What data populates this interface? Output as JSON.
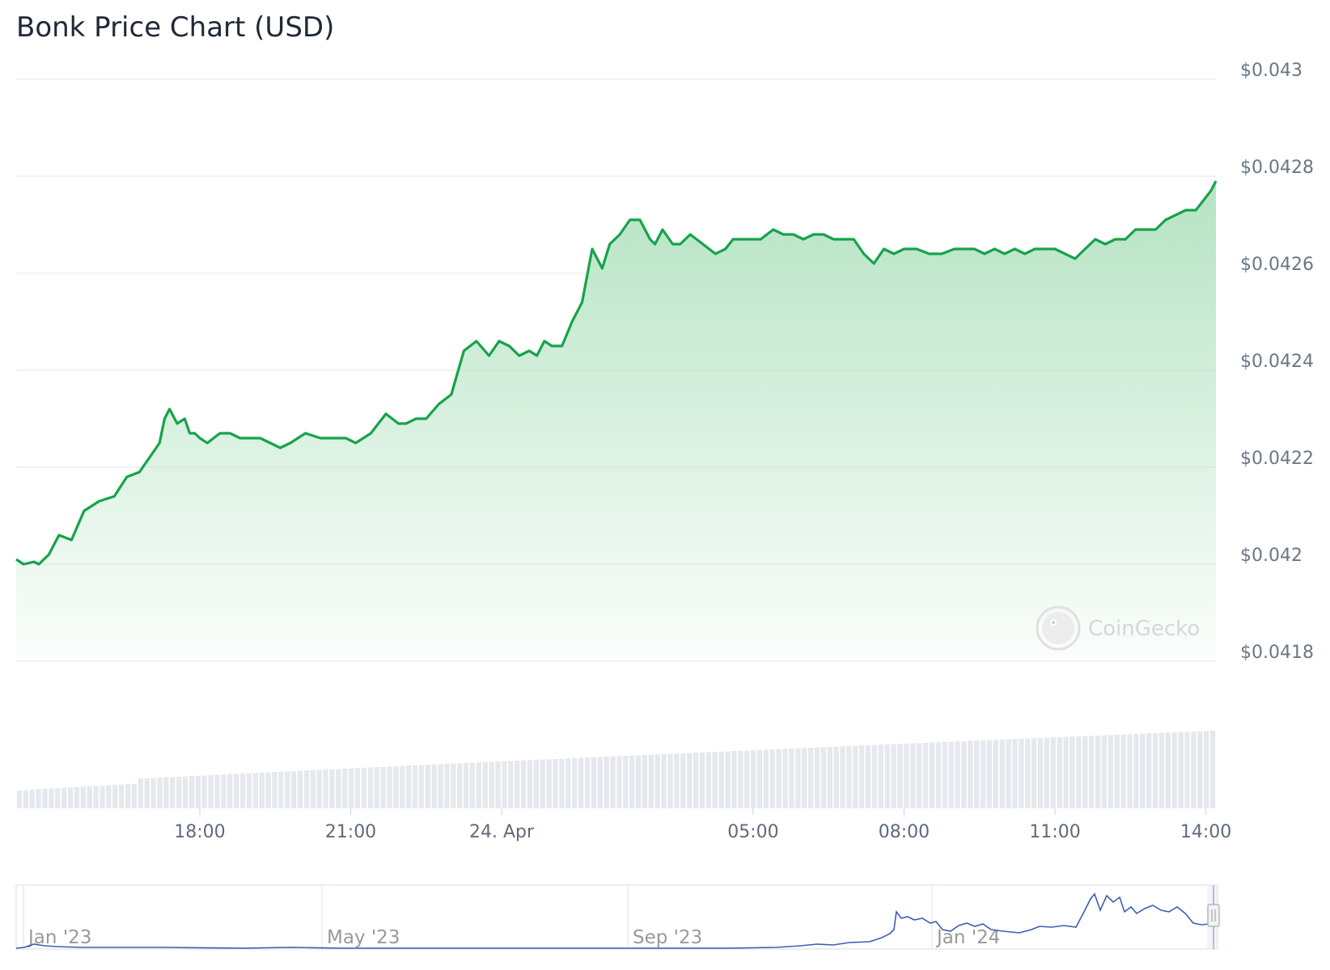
{
  "chart_data": {
    "type": "area",
    "title": "Bonk Price Chart (USD)",
    "xlabel": "",
    "ylabel": "",
    "y_ticks": [
      "$0.043",
      "$0.0428",
      "$0.0426",
      "$0.0424",
      "$0.0422",
      "$0.042",
      "$0.0418"
    ],
    "y_tick_values": [
      0.043,
      0.0428,
      0.0426,
      0.0424,
      0.0422,
      0.042,
      0.0418
    ],
    "ylim": [
      0.0418,
      0.043
    ],
    "x_ticks": [
      "18:00",
      "21:00",
      "24. Apr",
      "05:00",
      "08:00",
      "11:00",
      "14:00"
    ],
    "x_tick_hours": [
      18,
      21,
      24,
      29,
      32,
      35,
      38
    ],
    "x_range_hours": [
      14.35,
      38.2
    ],
    "grid": true,
    "line_color": "#16a34a",
    "fill_color": "#b9e5c6",
    "volume_color": "#e5e8ed",
    "series": [
      {
        "x": [
          14.35,
          14.5,
          14.7,
          14.8,
          15.0,
          15.2,
          15.45,
          15.7,
          16.0,
          16.3,
          16.55,
          16.8,
          17.0,
          17.2,
          17.3,
          17.4,
          17.55,
          17.7,
          17.8,
          17.9,
          18.0,
          18.15,
          18.4,
          18.6,
          18.8,
          19.0,
          19.2,
          19.4,
          19.6,
          19.8,
          20.1,
          20.4,
          20.7,
          20.9,
          21.1,
          21.4,
          21.7,
          21.95,
          22.1,
          22.3,
          22.5,
          22.75,
          23.0,
          23.25,
          23.5,
          23.75,
          23.95,
          24.15,
          24.35,
          24.55,
          24.7,
          24.85,
          25.0,
          25.2,
          25.4,
          25.6,
          25.8,
          26.0,
          26.15,
          26.35,
          26.55,
          26.75,
          26.85,
          26.95,
          27.05,
          27.2,
          27.4,
          27.55,
          27.75,
          28.0,
          28.25,
          28.45,
          28.6,
          28.75,
          28.95,
          29.15,
          29.4,
          29.6,
          29.8,
          30.0,
          30.2,
          30.4,
          30.6,
          30.8,
          31.0,
          31.2,
          31.4,
          31.6,
          31.8,
          32.0,
          32.25,
          32.5,
          32.75,
          33.0,
          33.2,
          33.4,
          33.6,
          33.8,
          34.0,
          34.2,
          34.4,
          34.6,
          34.8,
          35.0,
          35.2,
          35.4,
          35.6,
          35.8,
          36.0,
          36.2,
          36.4,
          36.6,
          36.8,
          37.0,
          37.2,
          37.4,
          37.6,
          37.8,
          37.95,
          38.1,
          38.2
        ],
        "values": [
          0.04201,
          0.042,
          0.042005,
          0.042,
          0.04202,
          0.04206,
          0.04205,
          0.04211,
          0.04213,
          0.04214,
          0.04218,
          0.04219,
          0.04222,
          0.04225,
          0.0423,
          0.04232,
          0.04229,
          0.0423,
          0.04227,
          0.04227,
          0.04226,
          0.04225,
          0.04227,
          0.04227,
          0.04226,
          0.04226,
          0.04226,
          0.04225,
          0.04224,
          0.04225,
          0.04227,
          0.04226,
          0.04226,
          0.04226,
          0.04225,
          0.04227,
          0.04231,
          0.04229,
          0.04229,
          0.0423,
          0.0423,
          0.04233,
          0.04235,
          0.04244,
          0.04246,
          0.04243,
          0.04246,
          0.04245,
          0.04243,
          0.04244,
          0.04243,
          0.04246,
          0.04245,
          0.04245,
          0.0425,
          0.04254,
          0.04265,
          0.04261,
          0.04266,
          0.04268,
          0.04271,
          0.04271,
          0.04269,
          0.04267,
          0.04266,
          0.04269,
          0.04266,
          0.04266,
          0.04268,
          0.04266,
          0.04264,
          0.04265,
          0.04267,
          0.04267,
          0.04267,
          0.04267,
          0.04269,
          0.04268,
          0.04268,
          0.04267,
          0.04268,
          0.04268,
          0.04267,
          0.04267,
          0.04267,
          0.04264,
          0.04262,
          0.04265,
          0.04264,
          0.04265,
          0.04265,
          0.04264,
          0.04264,
          0.04265,
          0.04265,
          0.04265,
          0.04264,
          0.04265,
          0.04264,
          0.04265,
          0.04264,
          0.04265,
          0.04265,
          0.04265,
          0.04264,
          0.04263,
          0.04265,
          0.04267,
          0.04266,
          0.04267,
          0.04267,
          0.04269,
          0.04269,
          0.04269,
          0.04271,
          0.04272,
          0.04273,
          0.04273,
          0.04275,
          0.04277,
          0.04279
        ]
      }
    ],
    "navigator": {
      "x_labels": [
        "Jan '23",
        "May '23",
        "Sep '23",
        "Jan '24"
      ]
    }
  },
  "watermark": {
    "text": "CoinGecko",
    "icon": "gecko-logo-icon"
  }
}
